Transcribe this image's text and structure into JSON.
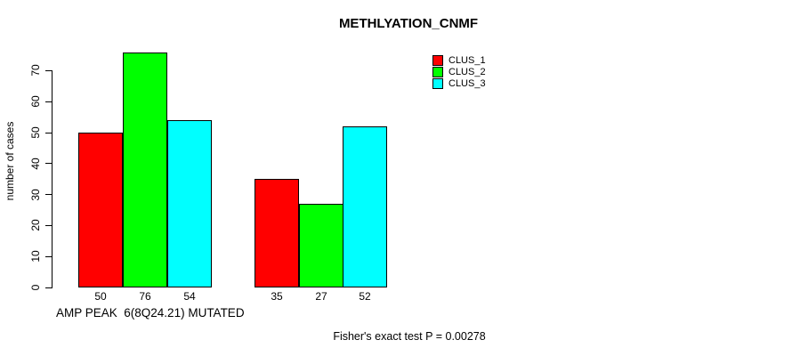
{
  "chart_data": {
    "type": "bar",
    "title": "METHLYATION_CNMF",
    "ylabel": "number of cases",
    "xlabel": "AMP PEAK  6(8Q24.21) MUTATED",
    "categories": [
      "AMP PEAK 6(8Q24.21) MUTATED",
      ""
    ],
    "series": [
      {
        "name": "CLUS_1",
        "color": "#ff0000",
        "values": [
          50,
          35
        ]
      },
      {
        "name": "CLUS_2",
        "color": "#00ff00",
        "values": [
          76,
          27
        ]
      },
      {
        "name": "CLUS_3",
        "color": "#00ffff",
        "values": [
          54,
          52
        ]
      }
    ],
    "bar_value_labels": [
      [
        50,
        76,
        54
      ],
      [
        35,
        27,
        52
      ]
    ],
    "yticks": [
      0,
      10,
      20,
      30,
      40,
      50,
      60,
      70
    ],
    "ylim": [
      0,
      76
    ],
    "grid": false,
    "legend_position": "top-right",
    "annotation": "Fisher's exact test P = 0.00278"
  }
}
